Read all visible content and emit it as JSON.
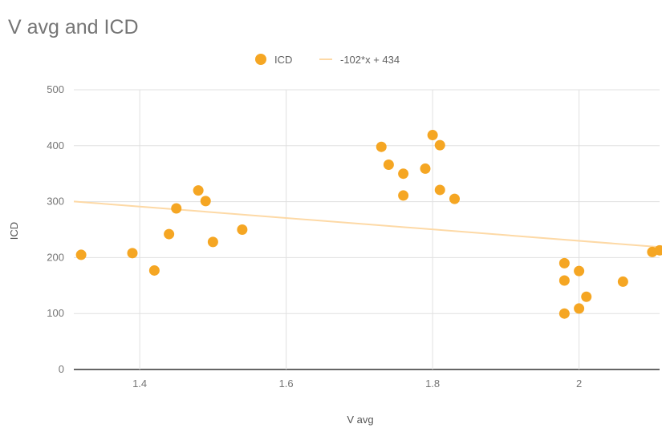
{
  "chart_data": {
    "type": "scatter",
    "title": "V avg and ICD",
    "xlabel": "V avg",
    "ylabel": "ICD",
    "xlim": [
      1.31,
      2.11
    ],
    "ylim": [
      0,
      500
    ],
    "xticks": [
      1.4,
      1.6,
      1.8,
      2
    ],
    "xtick_labels": [
      "1.4",
      "1.6",
      "1.8",
      "2"
    ],
    "yticks": [
      0,
      100,
      200,
      300,
      400,
      500
    ],
    "ytick_labels": [
      "0",
      "100",
      "200",
      "300",
      "400",
      "500"
    ],
    "grid": true,
    "legend_position": "top",
    "series": [
      {
        "name": "ICD",
        "color": "#F5A623",
        "points": [
          [
            1.32,
            205
          ],
          [
            1.39,
            208
          ],
          [
            1.42,
            177
          ],
          [
            1.44,
            242
          ],
          [
            1.45,
            288
          ],
          [
            1.48,
            320
          ],
          [
            1.49,
            301
          ],
          [
            1.5,
            228
          ],
          [
            1.54,
            250
          ],
          [
            1.73,
            398
          ],
          [
            1.74,
            366
          ],
          [
            1.76,
            350
          ],
          [
            1.76,
            311
          ],
          [
            1.79,
            359
          ],
          [
            1.8,
            419
          ],
          [
            1.81,
            401
          ],
          [
            1.81,
            321
          ],
          [
            1.83,
            305
          ],
          [
            1.98,
            190
          ],
          [
            1.98,
            159
          ],
          [
            1.98,
            100
          ],
          [
            2.0,
            176
          ],
          [
            2.0,
            109
          ],
          [
            2.01,
            130
          ],
          [
            2.06,
            157
          ],
          [
            2.1,
            210
          ],
          [
            2.11,
            213
          ]
        ]
      }
    ],
    "trendline": {
      "label": "-102*x + 434",
      "color": "#FDD9A6",
      "slope": -102,
      "intercept": 434
    }
  }
}
